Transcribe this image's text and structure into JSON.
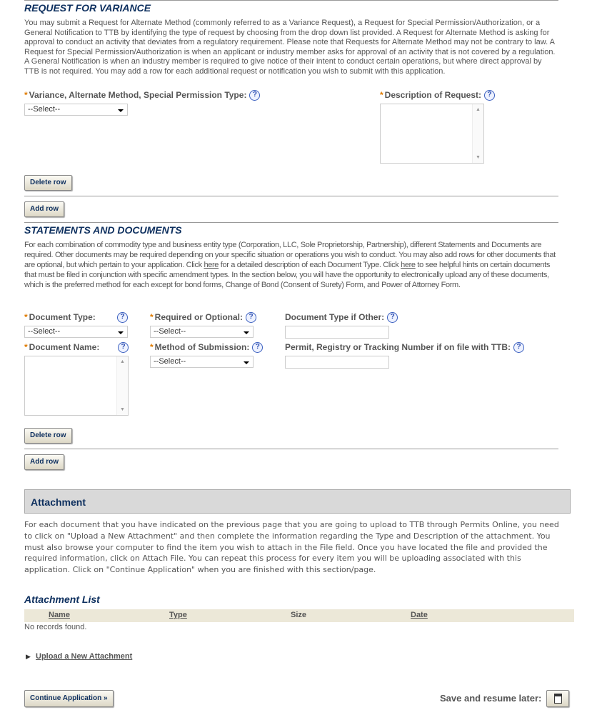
{
  "variance": {
    "title": "REQUEST FOR VARIANCE",
    "description": "You may submit a Request for Alternate Method (commonly referred to as a Variance Request), a Request for Special Permission/Authorization, or a General Notification to TTB by identifying the type of request by choosing from the drop down list provided. A Request for Alternate Method is asking for approval to conduct an activity that deviates from a regulatory requirement. Please note that Requests for Alternate Method may not be contrary to law. A Request for Special Permission/Authorization is when an applicant or industry member asks for approval of an activity that is not covered by a regulation. A General Notification is when an industry member is required to give notice of their intent to conduct certain operations, but where direct approval by TTB is not required. You may add a row for each additional request or notification you wish to submit with this application.",
    "type_label": "Variance, Alternate Method, Special Permission Type:",
    "type_value": "--Select--",
    "desc_label": "Description of Request:",
    "delete_row": "Delete row",
    "add_row": "Add row"
  },
  "statements": {
    "title": "STATEMENTS AND DOCUMENTS",
    "desc_1": "For each combination of commodity type and business entity type (Corporation, LLC, Sole Proprietorship, Partnership), different Statements and Documents are required. Other documents may be required depending on your specific situation or operations you wish to conduct. You may also add rows for other documents that are optional, but which pertain to your application. Click ",
    "link_1": "here",
    "desc_2": " for a detailed description of each Document Type. Click ",
    "link_2": "here",
    "desc_3": " to see helpful hints on certain documents that must be filed in conjunction with specific amendment types. In the section below, you will have the opportunity to electronically upload any of these documents, which is the preferred method for each except for bond forms, Change of Bond (Consent of Surety) Form, and Power of Attorney Form.",
    "doc_type_label": "Document Type:",
    "doc_type_value": "--Select--",
    "req_opt_label": "Required or Optional:",
    "req_opt_value": "--Select--",
    "doc_other_label": "Document Type if Other:",
    "doc_name_label": "Document Name:",
    "method_label": "Method of Submission:",
    "method_value": "--Select--",
    "permit_label": "Permit, Registry or Tracking Number if on file with TTB:",
    "delete_row": "Delete row",
    "add_row": "Add row"
  },
  "attachment": {
    "title": "Attachment",
    "description": "For each document that you have indicated on the previous page that you are going to upload to TTB through Permits Online, you need to click on \"Upload a New Attachment\" and then complete the information regarding the Type and Description of the attachment.  You must also browse your computer to find the item you wish to attach in the File field.   Once you have located the file and provided the required information, click on Attach File.   You can repeat this process for every item you will be uploading associated with this application.   Click on \"Continue Application\" when you are finished with this section/page.",
    "list_title": "Attachment List",
    "columns": [
      "Name",
      "Type",
      "Size",
      "Date"
    ],
    "empty": "No records found.",
    "upload_link": "Upload a New Attachment"
  },
  "footer": {
    "continue": "Continue Application »",
    "save_label": "Save and resume later:"
  },
  "colors": {
    "heading": "#0d2f5e",
    "required": "#e07b00",
    "table_header": "#ece8d8",
    "section_bar": "#d9d9d9"
  }
}
